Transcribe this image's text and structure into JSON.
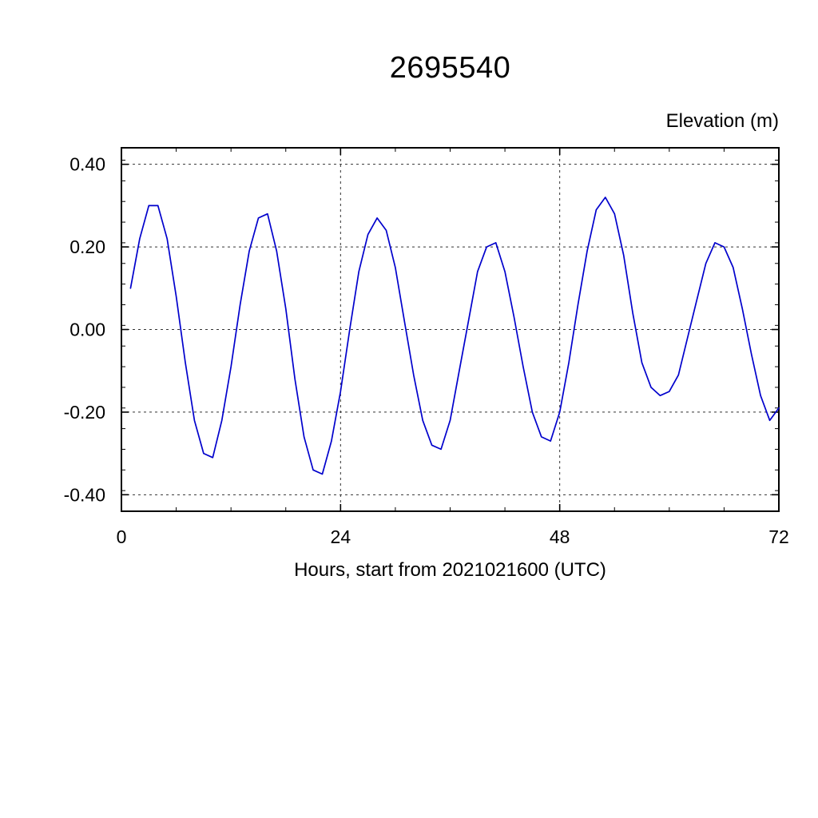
{
  "chart": {
    "title": "2695540",
    "y_axis_label": "Elevation (m)",
    "x_axis_label": "Hours, start from 2021021600 (UTC)"
  },
  "chart_data": {
    "type": "line",
    "title": "2695540",
    "xlabel": "Hours, start from 2021021600 (UTC)",
    "ylabel": "Elevation (m)",
    "xlim": [
      0,
      72
    ],
    "ylim": [
      -0.44,
      0.44
    ],
    "x_ticks": [
      0,
      24,
      48,
      72
    ],
    "y_ticks": [
      0.4,
      0.2,
      0.0,
      -0.2,
      -0.4
    ],
    "x_tick_labels": [
      "0",
      "24",
      "48",
      "72"
    ],
    "y_tick_labels": [
      "0.40",
      "0.20",
      "0.00",
      "-0.20",
      "-0.40"
    ],
    "x_minor_step": 6,
    "y_minor_step": 0.05,
    "grid": "dashed lines at major ticks, vertical at 24 and 48",
    "legend": "none",
    "line_color": "#0000cc",
    "series": [
      {
        "name": "elevation",
        "x": [
          1,
          2,
          3,
          4,
          5,
          6,
          7,
          8,
          9,
          10,
          11,
          12,
          13,
          14,
          15,
          16,
          17,
          18,
          19,
          20,
          21,
          22,
          23,
          24,
          25,
          26,
          27,
          28,
          29,
          30,
          31,
          32,
          33,
          34,
          35,
          36,
          37,
          38,
          39,
          40,
          41,
          42,
          43,
          44,
          45,
          46,
          47,
          48,
          49,
          50,
          51,
          52,
          53,
          54,
          55,
          56,
          57,
          58,
          59,
          60,
          61,
          62,
          63,
          64,
          65,
          66,
          67,
          68,
          69,
          70,
          71,
          72
        ],
        "y": [
          0.1,
          0.22,
          0.3,
          0.3,
          0.22,
          0.08,
          -0.08,
          -0.22,
          -0.3,
          -0.31,
          -0.22,
          -0.09,
          0.06,
          0.19,
          0.27,
          0.28,
          0.19,
          0.05,
          -0.12,
          -0.26,
          -0.34,
          -0.35,
          -0.27,
          -0.15,
          0.0,
          0.14,
          0.23,
          0.27,
          0.24,
          0.15,
          0.02,
          -0.11,
          -0.22,
          -0.28,
          -0.29,
          -0.22,
          -0.1,
          0.02,
          0.14,
          0.2,
          0.21,
          0.14,
          0.03,
          -0.09,
          -0.2,
          -0.26,
          -0.27,
          -0.2,
          -0.08,
          0.06,
          0.19,
          0.29,
          0.32,
          0.28,
          0.18,
          0.04,
          -0.08,
          -0.14,
          -0.16,
          -0.15,
          -0.11,
          -0.02,
          0.07,
          0.16,
          0.21,
          0.2,
          0.15,
          0.05,
          -0.06,
          -0.16,
          -0.22,
          -0.19
        ]
      }
    ]
  }
}
